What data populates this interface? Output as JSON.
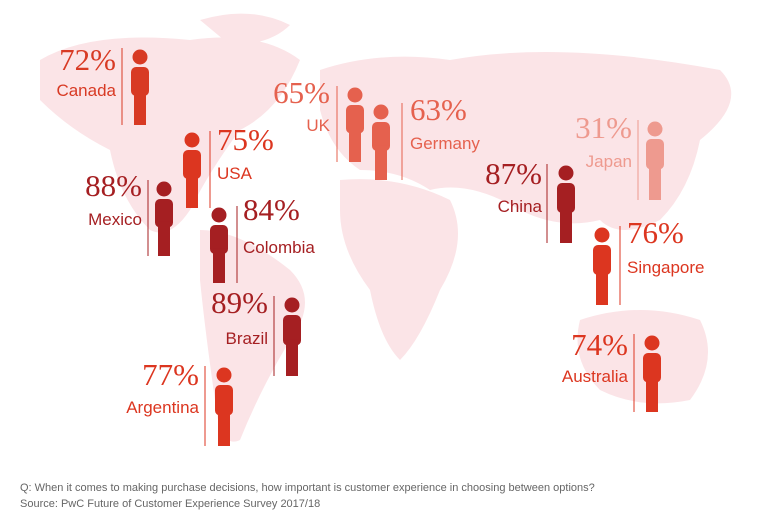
{
  "items": [
    {
      "percent": "72%",
      "name": "Canada",
      "color": "#d83a24"
    },
    {
      "percent": "65%",
      "name": "UK",
      "color": "#e5614e"
    },
    {
      "percent": "63%",
      "name": "Germany",
      "color": "#e5614e"
    },
    {
      "percent": "31%",
      "name": "Japan",
      "color": "#ee9a8f"
    },
    {
      "percent": "75%",
      "name": "USA",
      "color": "#dc3620"
    },
    {
      "percent": "88%",
      "name": "Mexico",
      "color": "#a51f22"
    },
    {
      "percent": "84%",
      "name": "Colombia",
      "color": "#a51f22"
    },
    {
      "percent": "87%",
      "name": "China",
      "color": "#a51f22"
    },
    {
      "percent": "76%",
      "name": "Singapore",
      "color": "#dc3620"
    },
    {
      "percent": "89%",
      "name": "Brazil",
      "color": "#a51f22"
    },
    {
      "percent": "77%",
      "name": "Argentina",
      "color": "#dc3620"
    },
    {
      "percent": "74%",
      "name": "Australia",
      "color": "#dc3620"
    }
  ],
  "footer": {
    "question": "Q: When it comes to making purchase decisions, how important is customer experience in choosing between options?",
    "source": "Source: PwC Future of Customer Experience Survey 2017/18"
  }
}
